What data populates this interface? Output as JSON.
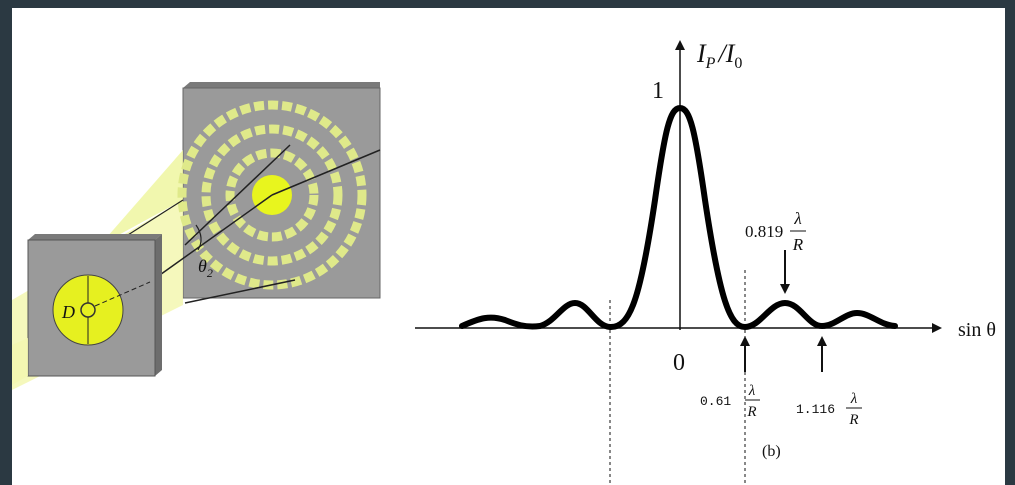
{
  "aperture": {
    "diameter_label": "D",
    "angle_label": {
      "base": "θ",
      "sub": "2"
    }
  },
  "graph": {
    "y_axis_label": {
      "base1": "I",
      "sub1": "P",
      "sep": "/",
      "base2": "I",
      "sub2": "0"
    },
    "peak_label": "1",
    "origin_label": "0",
    "x_axis_label": "sin θ",
    "markers": [
      {
        "coefficient": "0.61",
        "numerator": "λ",
        "denominator": "R"
      },
      {
        "coefficient": "0.819",
        "numerator": "λ",
        "denominator": "R"
      },
      {
        "coefficient": "1.116",
        "numerator": "λ",
        "denominator": "R"
      }
    ],
    "caption": "(b)"
  }
}
